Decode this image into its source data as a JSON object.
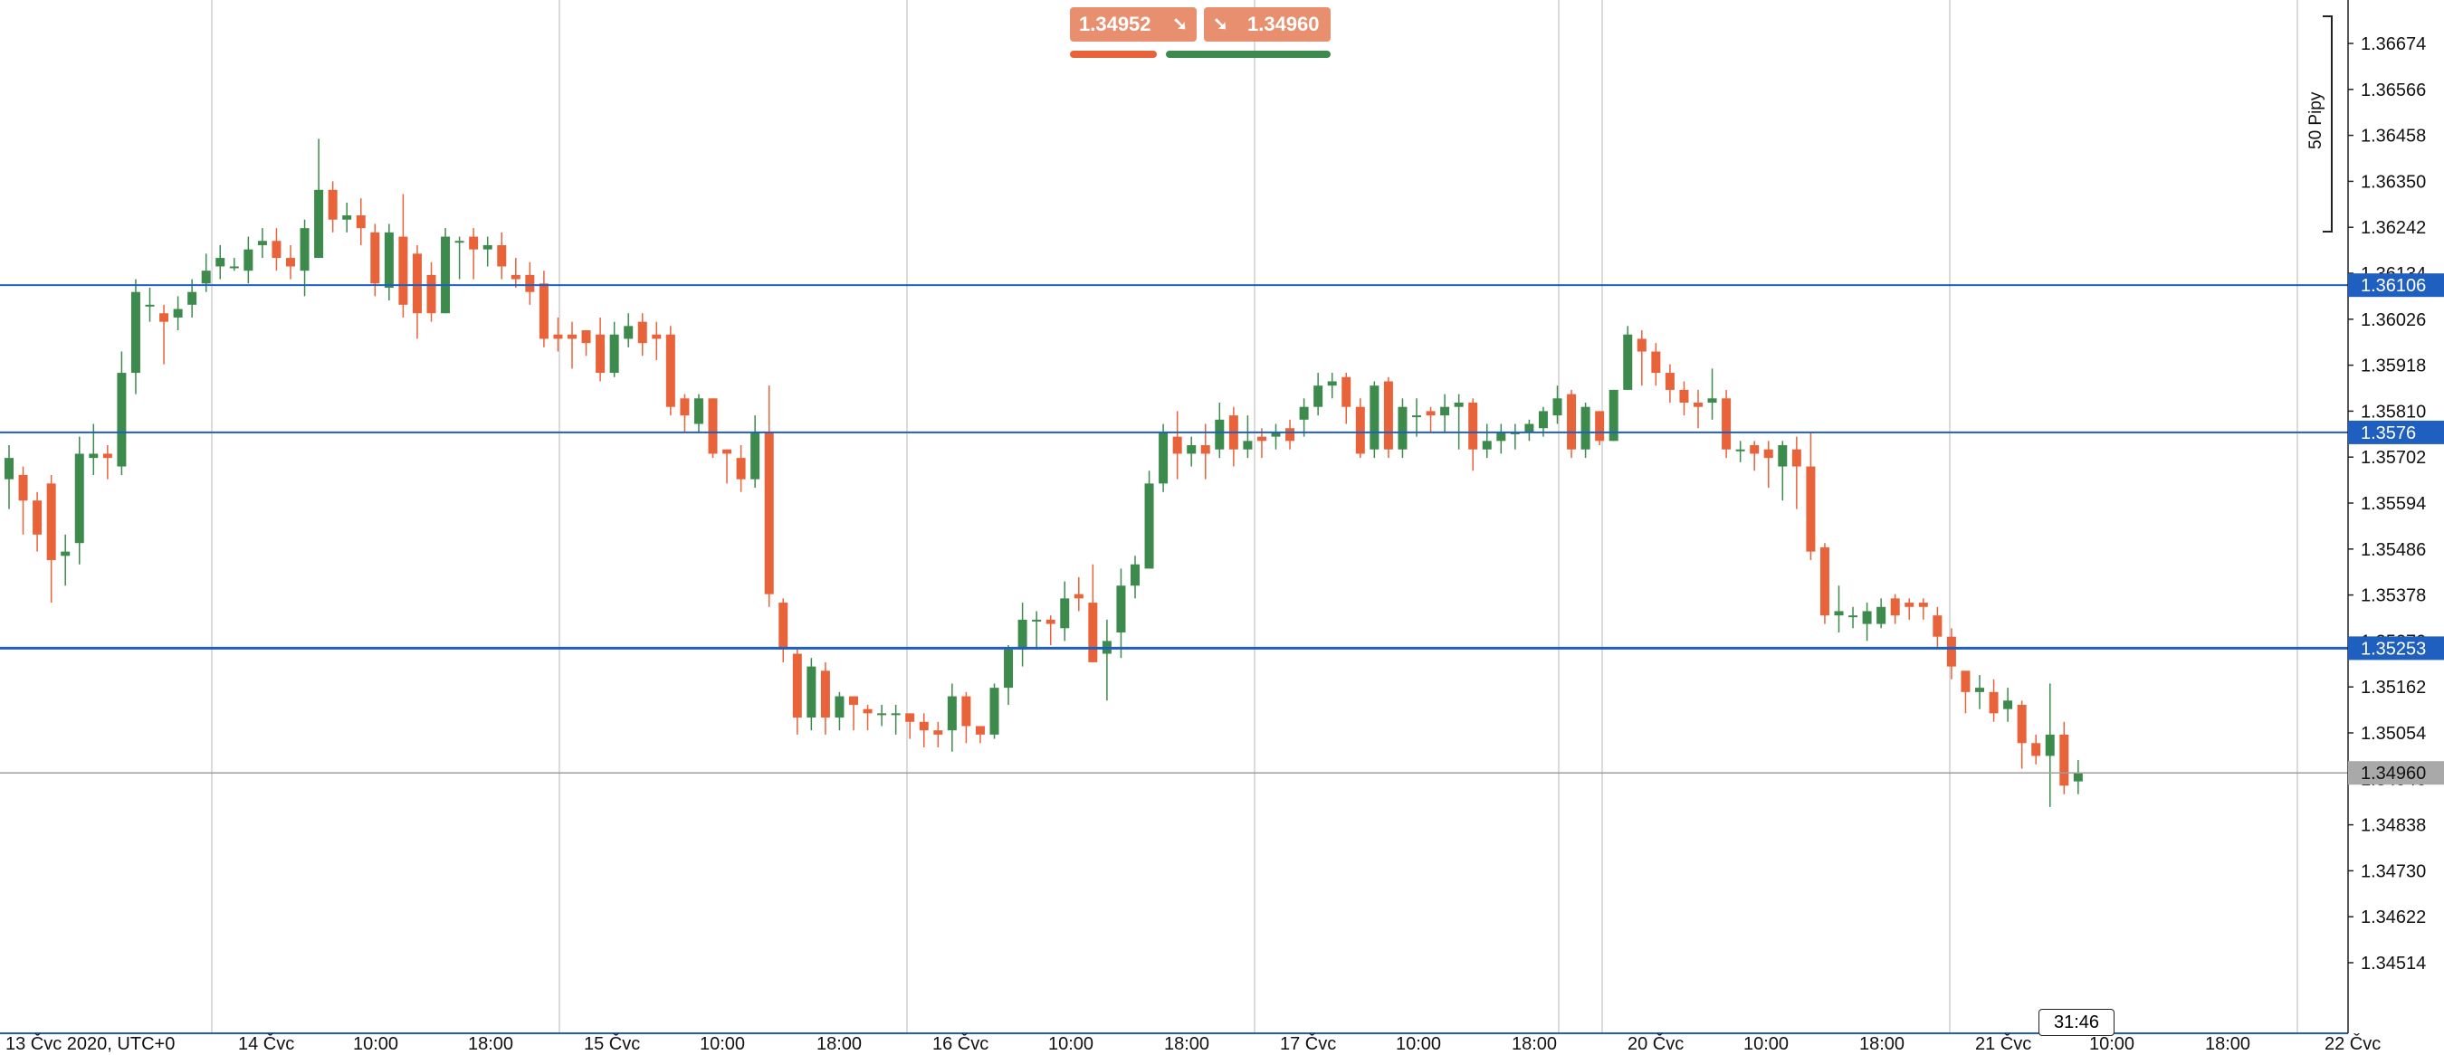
{
  "header": {
    "sell_price": "1.34952",
    "buy_price": "1.34960",
    "sell_icon": "arrow-down-right-icon",
    "buy_icon": "arrow-down-right-icon",
    "sell_color": "#e8623a",
    "buy_color": "#3d8a4d",
    "pip_scale_label": "50 Pipy"
  },
  "current_time": "31:46",
  "colors": {
    "bullish": "#3d8a4d",
    "bearish": "#e8623a",
    "level_line": "#1f5fbf",
    "current_line": "#9e9e9e"
  },
  "chart_data": {
    "type": "candlestick",
    "title": "",
    "ylim": [
      1.344,
      1.3676
    ],
    "y_ticks": [
      "1.36674",
      "1.36566",
      "1.36458",
      "1.36350",
      "1.36242",
      "1.36134",
      "1.36026",
      "1.35918",
      "1.35810",
      "1.35702",
      "1.35594",
      "1.35486",
      "1.35378",
      "1.35270",
      "1.35162",
      "1.35054",
      "1.34946",
      "1.34838",
      "1.34730",
      "1.34622",
      "1.34514"
    ],
    "x_labels": [
      "13 Čvc 2020, UTC+0",
      "14 Čvc",
      "10:00",
      "18:00",
      "15 Čvc",
      "10:00",
      "18:00",
      "16 Čvc",
      "10:00",
      "18:00",
      "17 Čvc",
      "10:00",
      "18:00",
      "20 Čvc",
      "10:00",
      "18:00",
      "21 Čvc",
      "10:00",
      "18:00",
      "22 Čvc"
    ],
    "levels": [
      {
        "price": 1.36106,
        "label": "1.36106"
      },
      {
        "price": 1.3576,
        "label": "1.3576"
      },
      {
        "price": 1.35253,
        "label": "1.35253"
      }
    ],
    "current_price": {
      "price": 1.3496,
      "label": "1.34960"
    },
    "candles": [
      [
        1.3565,
        1.357,
        1.3558,
        1.3573
      ],
      [
        1.3566,
        1.356,
        1.3552,
        1.3568
      ],
      [
        1.356,
        1.3552,
        1.3548,
        1.3562
      ],
      [
        1.3564,
        1.3546,
        1.3536,
        1.3566
      ],
      [
        1.3547,
        1.3548,
        1.354,
        1.3552
      ],
      [
        1.355,
        1.3571,
        1.3545,
        1.3575
      ],
      [
        1.357,
        1.3571,
        1.3566,
        1.3578
      ],
      [
        1.3571,
        1.357,
        1.3565,
        1.3573
      ],
      [
        1.3568,
        1.359,
        1.3566,
        1.3595
      ],
      [
        1.359,
        1.3609,
        1.3585,
        1.3612
      ],
      [
        1.3606,
        1.3606,
        1.3602,
        1.361
      ],
      [
        1.3604,
        1.3602,
        1.3592,
        1.3606
      ],
      [
        1.3603,
        1.3605,
        1.36,
        1.3608
      ],
      [
        1.3606,
        1.3609,
        1.3603,
        1.3612
      ],
      [
        1.3611,
        1.3614,
        1.3609,
        1.3618
      ],
      [
        1.3615,
        1.3617,
        1.3612,
        1.362
      ],
      [
        1.3615,
        1.3615,
        1.3614,
        1.3617
      ],
      [
        1.3614,
        1.3619,
        1.3611,
        1.3622
      ],
      [
        1.362,
        1.3621,
        1.3617,
        1.3624
      ],
      [
        1.3621,
        1.3617,
        1.3614,
        1.3624
      ],
      [
        1.3617,
        1.3615,
        1.3612,
        1.362
      ],
      [
        1.3614,
        1.3624,
        1.3608,
        1.3626
      ],
      [
        1.3617,
        1.3633,
        1.3617,
        1.3645
      ],
      [
        1.3633,
        1.3626,
        1.3623,
        1.3635
      ],
      [
        1.3626,
        1.3627,
        1.3623,
        1.363
      ],
      [
        1.3627,
        1.3624,
        1.362,
        1.3631
      ],
      [
        1.3623,
        1.3611,
        1.3608,
        1.3625
      ],
      [
        1.361,
        1.3623,
        1.3607,
        1.3625
      ],
      [
        1.3622,
        1.3606,
        1.3603,
        1.3632
      ],
      [
        1.3618,
        1.3604,
        1.3598,
        1.362
      ],
      [
        1.3613,
        1.3604,
        1.3602,
        1.3616
      ],
      [
        1.3604,
        1.3622,
        1.3604,
        1.3624
      ],
      [
        1.3621,
        1.3621,
        1.3612,
        1.3622
      ],
      [
        1.3622,
        1.3619,
        1.3612,
        1.3624
      ],
      [
        1.3619,
        1.362,
        1.3615,
        1.3622
      ],
      [
        1.362,
        1.3615,
        1.3612,
        1.3623
      ],
      [
        1.3613,
        1.3612,
        1.361,
        1.3617
      ],
      [
        1.3613,
        1.3609,
        1.3606,
        1.3616
      ],
      [
        1.3611,
        1.3598,
        1.3596,
        1.3614
      ],
      [
        1.3599,
        1.3598,
        1.3595,
        1.3603
      ],
      [
        1.3599,
        1.3598,
        1.3591,
        1.3602
      ],
      [
        1.36,
        1.3597,
        1.3594,
        1.36
      ],
      [
        1.3599,
        1.359,
        1.3588,
        1.3603
      ],
      [
        1.359,
        1.3599,
        1.3589,
        1.3602
      ],
      [
        1.3598,
        1.3601,
        1.3596,
        1.3604
      ],
      [
        1.3602,
        1.3597,
        1.3594,
        1.3604
      ],
      [
        1.3599,
        1.3598,
        1.3593,
        1.3602
      ],
      [
        1.3599,
        1.3582,
        1.358,
        1.3601
      ],
      [
        1.3584,
        1.358,
        1.3576,
        1.3585
      ],
      [
        1.3578,
        1.3584,
        1.3576,
        1.3585
      ],
      [
        1.3584,
        1.3571,
        1.357,
        1.3584
      ],
      [
        1.3572,
        1.3571,
        1.3564,
        1.3572
      ],
      [
        1.357,
        1.3565,
        1.3562,
        1.3573
      ],
      [
        1.3565,
        1.3576,
        1.3563,
        1.358
      ],
      [
        1.3576,
        1.3538,
        1.3535,
        1.3587
      ],
      [
        1.3536,
        1.3525,
        1.3522,
        1.3537
      ],
      [
        1.3524,
        1.3509,
        1.3505,
        1.3525
      ],
      [
        1.3509,
        1.3521,
        1.3506,
        1.3523
      ],
      [
        1.352,
        1.3509,
        1.3505,
        1.3522
      ],
      [
        1.3509,
        1.3514,
        1.3506,
        1.3515
      ],
      [
        1.3514,
        1.3512,
        1.3506,
        1.3514
      ],
      [
        1.3511,
        1.351,
        1.3506,
        1.3512
      ],
      [
        1.351,
        1.351,
        1.3507,
        1.3512
      ],
      [
        1.351,
        1.351,
        1.3505,
        1.3512
      ],
      [
        1.351,
        1.3508,
        1.3504,
        1.351
      ],
      [
        1.3508,
        1.3506,
        1.3502,
        1.351
      ],
      [
        1.3506,
        1.3505,
        1.3502,
        1.3508
      ],
      [
        1.3506,
        1.3514,
        1.3501,
        1.3517
      ],
      [
        1.3514,
        1.3507,
        1.3503,
        1.3515
      ],
      [
        1.3507,
        1.3505,
        1.3503,
        1.3506
      ],
      [
        1.3505,
        1.3516,
        1.3504,
        1.3517
      ],
      [
        1.3516,
        1.3525,
        1.3512,
        1.3526
      ],
      [
        1.3525,
        1.3532,
        1.3521,
        1.3536
      ],
      [
        1.3532,
        1.3532,
        1.3525,
        1.3534
      ],
      [
        1.3532,
        1.3531,
        1.3526,
        1.3533
      ],
      [
        1.353,
        1.3537,
        1.3527,
        1.3541
      ],
      [
        1.3538,
        1.3537,
        1.3534,
        1.3542
      ],
      [
        1.3536,
        1.3522,
        1.3522,
        1.3545
      ],
      [
        1.3524,
        1.3527,
        1.3513,
        1.3532
      ],
      [
        1.3529,
        1.354,
        1.3523,
        1.3544
      ],
      [
        1.354,
        1.3545,
        1.3537,
        1.3547
      ],
      [
        1.3544,
        1.3564,
        1.3545,
        1.3567
      ],
      [
        1.3564,
        1.3576,
        1.3562,
        1.3578
      ],
      [
        1.3575,
        1.3571,
        1.3565,
        1.3581
      ],
      [
        1.3571,
        1.3573,
        1.3568,
        1.3575
      ],
      [
        1.3573,
        1.3571,
        1.3565,
        1.3578
      ],
      [
        1.3572,
        1.3579,
        1.357,
        1.3583
      ],
      [
        1.358,
        1.3572,
        1.3568,
        1.3582
      ],
      [
        1.3572,
        1.3574,
        1.357,
        1.358
      ],
      [
        1.3575,
        1.3574,
        1.357,
        1.3577
      ],
      [
        1.3575,
        1.3576,
        1.3572,
        1.3578
      ],
      [
        1.3577,
        1.3574,
        1.3572,
        1.3579
      ],
      [
        1.3579,
        1.3582,
        1.3575,
        1.3584
      ],
      [
        1.3582,
        1.3587,
        1.358,
        1.359
      ],
      [
        1.3587,
        1.3588,
        1.3584,
        1.359
      ],
      [
        1.3589,
        1.3582,
        1.3578,
        1.359
      ],
      [
        1.3582,
        1.3571,
        1.357,
        1.3584
      ],
      [
        1.3572,
        1.3587,
        1.357,
        1.3588
      ],
      [
        1.3588,
        1.3572,
        1.357,
        1.3589
      ],
      [
        1.3572,
        1.3582,
        1.357,
        1.3584
      ],
      [
        1.358,
        1.358,
        1.3575,
        1.3584
      ],
      [
        1.3581,
        1.358,
        1.3576,
        1.3582
      ],
      [
        1.358,
        1.3582,
        1.3576,
        1.3585
      ],
      [
        1.3582,
        1.3583,
        1.3572,
        1.3585
      ],
      [
        1.3583,
        1.3572,
        1.3567,
        1.3584
      ],
      [
        1.3572,
        1.3574,
        1.357,
        1.3578
      ],
      [
        1.3574,
        1.3576,
        1.3571,
        1.3578
      ],
      [
        1.3576,
        1.3576,
        1.3572,
        1.3578
      ],
      [
        1.3576,
        1.3578,
        1.3574,
        1.3579
      ],
      [
        1.3577,
        1.3581,
        1.3575,
        1.3582
      ],
      [
        1.358,
        1.3584,
        1.3578,
        1.3587
      ],
      [
        1.3585,
        1.3572,
        1.357,
        1.3586
      ],
      [
        1.3572,
        1.3582,
        1.357,
        1.3583
      ],
      [
        1.3581,
        1.3574,
        1.3573,
        1.3581
      ],
      [
        1.3574,
        1.3586,
        1.3574,
        1.3586
      ],
      [
        1.3586,
        1.3599,
        1.3586,
        1.3601
      ],
      [
        1.3598,
        1.3595,
        1.3587,
        1.36
      ],
      [
        1.3595,
        1.359,
        1.3587,
        1.3597
      ],
      [
        1.359,
        1.3586,
        1.3583,
        1.3592
      ],
      [
        1.3586,
        1.3583,
        1.358,
        1.3588
      ],
      [
        1.3583,
        1.3582,
        1.3577,
        1.3586
      ],
      [
        1.3583,
        1.3584,
        1.3579,
        1.3591
      ],
      [
        1.3584,
        1.3572,
        1.357,
        1.3586
      ],
      [
        1.3572,
        1.3572,
        1.3569,
        1.3574
      ],
      [
        1.3573,
        1.3571,
        1.3567,
        1.3574
      ],
      [
        1.3572,
        1.357,
        1.3563,
        1.3574
      ],
      [
        1.3568,
        1.3573,
        1.356,
        1.3574
      ],
      [
        1.3572,
        1.3568,
        1.3558,
        1.3575
      ],
      [
        1.3568,
        1.3548,
        1.3546,
        1.3576
      ],
      [
        1.3549,
        1.3533,
        1.3531,
        1.355
      ],
      [
        1.3533,
        1.3534,
        1.3529,
        1.354
      ],
      [
        1.3533,
        1.3533,
        1.353,
        1.3535
      ],
      [
        1.3531,
        1.3534,
        1.3527,
        1.3536
      ],
      [
        1.3531,
        1.3535,
        1.353,
        1.3537
      ],
      [
        1.3537,
        1.3533,
        1.3531,
        1.3538
      ],
      [
        1.3536,
        1.3535,
        1.3532,
        1.3537
      ],
      [
        1.3536,
        1.3535,
        1.3532,
        1.3537
      ],
      [
        1.3533,
        1.3528,
        1.3525,
        1.3535
      ],
      [
        1.3528,
        1.3521,
        1.3518,
        1.353
      ],
      [
        1.352,
        1.3515,
        1.351,
        1.352
      ],
      [
        1.3515,
        1.3516,
        1.3511,
        1.3519
      ],
      [
        1.3515,
        1.351,
        1.3508,
        1.3518
      ],
      [
        1.3511,
        1.3513,
        1.3508,
        1.3516
      ],
      [
        1.3512,
        1.3503,
        1.3497,
        1.3513
      ],
      [
        1.3503,
        1.35,
        1.3498,
        1.3505
      ],
      [
        1.35,
        1.3505,
        1.3488,
        1.3517
      ],
      [
        1.3505,
        1.3493,
        1.3491,
        1.3508
      ],
      [
        1.3494,
        1.3496,
        1.3491,
        1.3499
      ]
    ]
  }
}
